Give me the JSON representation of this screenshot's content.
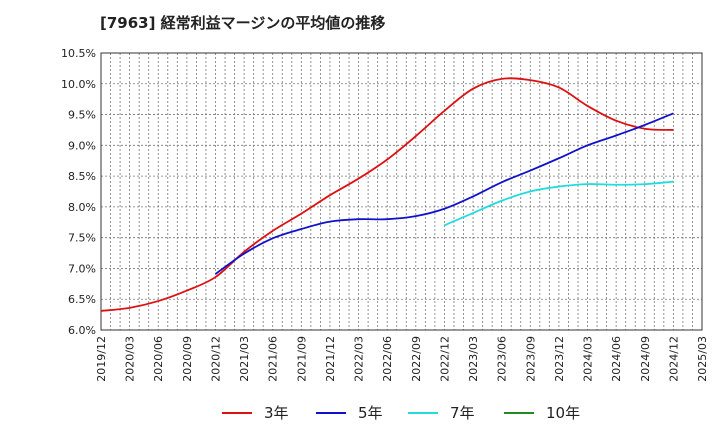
{
  "title": "[7963]  経常利益マージンの平均値の推移",
  "chart_data": {
    "type": "line",
    "title": "[7963]  経常利益マージンの平均値の推移",
    "xlabel": "",
    "ylabel": "",
    "x_tick_labels": [
      "2019/12",
      "2020/03",
      "2020/06",
      "2020/09",
      "2020/12",
      "2021/03",
      "2021/06",
      "2021/09",
      "2021/12",
      "2022/03",
      "2022/06",
      "2022/09",
      "2022/12",
      "2023/03",
      "2023/06",
      "2023/09",
      "2023/12",
      "2024/03",
      "2024/06",
      "2024/09",
      "2024/12",
      "2025/03"
    ],
    "y_tick_labels": [
      "6.0%",
      "6.5%",
      "7.0%",
      "7.5%",
      "8.0%",
      "8.5%",
      "9.0%",
      "9.5%",
      "10.0%",
      "10.5%"
    ],
    "y_ticks": [
      6.0,
      6.5,
      7.0,
      7.5,
      8.0,
      8.5,
      9.0,
      9.5,
      10.0,
      10.5
    ],
    "ylim": [
      6.0,
      10.5
    ],
    "grid": true,
    "legend_position": "bottom",
    "series": [
      {
        "name": "3年",
        "color": "#dd1111",
        "x": [
          "2019/12",
          "2020/03",
          "2020/06",
          "2020/09",
          "2020/12",
          "2021/03",
          "2021/06",
          "2021/09",
          "2021/12",
          "2022/03",
          "2022/06",
          "2022/09",
          "2022/12",
          "2023/03",
          "2023/06",
          "2023/09",
          "2023/12",
          "2024/03",
          "2024/06",
          "2024/09",
          "2024/12"
        ],
        "values": [
          6.31,
          6.36,
          6.47,
          6.64,
          6.86,
          7.27,
          7.61,
          7.89,
          8.19,
          8.46,
          8.77,
          9.15,
          9.56,
          9.92,
          10.08,
          10.06,
          9.94,
          9.64,
          9.4,
          9.27,
          9.25
        ]
      },
      {
        "name": "5年",
        "color": "#1111cc",
        "x": [
          "2020/12",
          "2021/03",
          "2021/06",
          "2021/09",
          "2021/12",
          "2022/03",
          "2022/06",
          "2022/09",
          "2022/12",
          "2023/03",
          "2023/06",
          "2023/09",
          "2023/12",
          "2024/03",
          "2024/06",
          "2024/09",
          "2024/12"
        ],
        "values": [
          6.91,
          7.24,
          7.49,
          7.64,
          7.76,
          7.8,
          7.8,
          7.85,
          7.97,
          8.17,
          8.4,
          8.59,
          8.79,
          9.0,
          9.16,
          9.33,
          9.52
        ]
      },
      {
        "name": "7年",
        "color": "#22dddd",
        "x": [
          "2022/12",
          "2023/03",
          "2023/06",
          "2023/09",
          "2023/12",
          "2024/03",
          "2024/06",
          "2024/09",
          "2024/12"
        ],
        "values": [
          7.7,
          7.9,
          8.1,
          8.25,
          8.33,
          8.37,
          8.36,
          8.37,
          8.41
        ]
      },
      {
        "name": "10年",
        "color": "#228822",
        "x": [],
        "values": []
      }
    ]
  }
}
